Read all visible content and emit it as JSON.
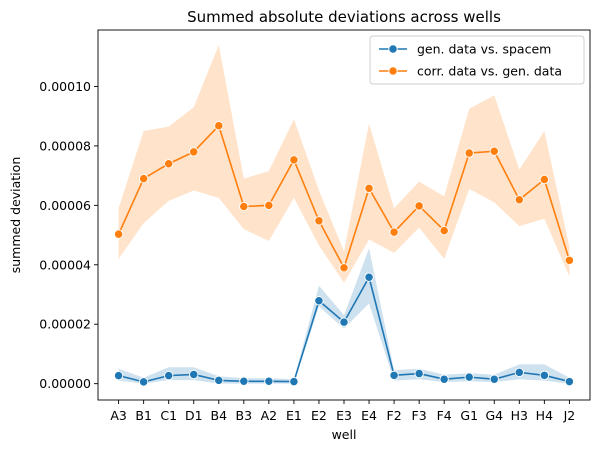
{
  "chart_data": {
    "type": "line",
    "title": "Summed absolute deviations across wells",
    "xlabel": "well",
    "ylabel": "summed deviation",
    "categories": [
      "A3",
      "B1",
      "C1",
      "D1",
      "B4",
      "B3",
      "A2",
      "E1",
      "E2",
      "E3",
      "E4",
      "F2",
      "F3",
      "F4",
      "G1",
      "G4",
      "H3",
      "H4",
      "J2"
    ],
    "ylim": [
      -5.5e-06,
      0.000119
    ],
    "yticks": [
      0,
      2e-05,
      4e-05,
      6e-05,
      8e-05,
      0.0001
    ],
    "ytick_labels": [
      "0.00000",
      "0.00002",
      "0.00004",
      "0.00006",
      "0.00008",
      "0.00010"
    ],
    "legend_position": "top-right",
    "series": [
      {
        "name": "gen. data vs. spacem",
        "color": "#1f77b4",
        "values": [
          2.7e-06,
          6e-07,
          2.7e-06,
          3.1e-06,
          1.1e-06,
          8e-07,
          8e-07,
          7e-07,
          2.79e-05,
          2.07e-05,
          3.58e-05,
          2.8e-06,
          3.4e-06,
          1.5e-06,
          2.2e-06,
          1.5e-06,
          3.8e-06,
          2.8e-06,
          7e-07
        ],
        "ci_upper": [
          5e-06,
          2e-06,
          5.5e-06,
          5.5e-06,
          2.5e-06,
          1.8e-06,
          1.8e-06,
          1.5e-06,
          3.3e-05,
          2.3e-05,
          4.55e-05,
          4.5e-06,
          5e-06,
          3e-06,
          3.5e-06,
          3e-06,
          6.5e-06,
          6.5e-06,
          2e-06
        ],
        "ci_lower": [
          1e-06,
          0.0,
          1.2e-06,
          1.2e-06,
          0.0,
          0.0,
          0.0,
          0.0,
          2.6e-05,
          1.85e-05,
          2.7e-05,
          1e-06,
          1.5e-06,
          5e-07,
          8e-07,
          5e-07,
          1.5e-06,
          1e-06,
          0.0
        ]
      },
      {
        "name": "corr. data vs. gen. data",
        "color": "#ff7f0e",
        "values": [
          5.03e-05,
          6.9e-05,
          7.4e-05,
          7.8e-05,
          8.68e-05,
          5.96e-05,
          6e-05,
          7.53e-05,
          5.48e-05,
          3.9e-05,
          6.57e-05,
          5.1e-05,
          5.98e-05,
          5.15e-05,
          7.76e-05,
          7.82e-05,
          6.19e-05,
          6.87e-05,
          4.15e-05
        ],
        "ci_upper": [
          5.9e-05,
          8.5e-05,
          8.65e-05,
          9.3e-05,
          0.000114,
          6.9e-05,
          7.15e-05,
          8.9e-05,
          6.5e-05,
          4.45e-05,
          8.75e-05,
          5.9e-05,
          6.8e-05,
          6.3e-05,
          9.25e-05,
          9.7e-05,
          7.2e-05,
          8.5e-05,
          4.6e-05
        ],
        "ci_lower": [
          4.2e-05,
          5.4e-05,
          6.15e-05,
          6.5e-05,
          6.25e-05,
          5.2e-05,
          4.8e-05,
          6.25e-05,
          4.65e-05,
          3.4e-05,
          4.85e-05,
          4.4e-05,
          5.25e-05,
          4.2e-05,
          6.55e-05,
          6.1e-05,
          5.3e-05,
          5.55e-05,
          3.6e-05
        ]
      }
    ]
  }
}
